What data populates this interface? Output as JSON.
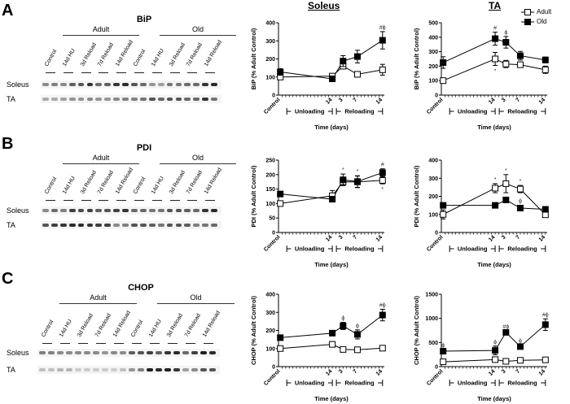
{
  "figure": {
    "column_titles": [
      "Soleus",
      "TA"
    ],
    "legend": [
      {
        "label": "Adult",
        "marker": "open-square"
      },
      {
        "label": "Old",
        "marker": "filled-square"
      }
    ]
  },
  "blots": [
    {
      "letter": "A",
      "title": "BiP",
      "groups": [
        "Adult",
        "Old"
      ],
      "lanes": [
        "Control",
        "14d HU",
        "3d Reload",
        "7d Reload",
        "14d Reload",
        "Control",
        "14d HU",
        "3d Reload",
        "7d Reload",
        "14d Reload"
      ],
      "rows": [
        {
          "label": "Soleus",
          "intensity": [
            0.45,
            0.5,
            0.45,
            0.65,
            0.7,
            0.85,
            0.6,
            0.65,
            0.85,
            0.9,
            0.7,
            0.6,
            0.4,
            0.35,
            0.55,
            0.55,
            0.6,
            0.6,
            0.85,
            0.9
          ]
        },
        {
          "label": "TA",
          "intensity": [
            0.3,
            0.3,
            0.35,
            0.4,
            0.4,
            0.45,
            0.4,
            0.4,
            0.45,
            0.5,
            0.5,
            0.55,
            0.7,
            0.6,
            0.7,
            0.7,
            0.6,
            0.6,
            0.85,
            0.55
          ]
        }
      ]
    },
    {
      "letter": "B",
      "title": "PDI",
      "groups": [
        "Adult",
        "Old"
      ],
      "lanes": [
        "Control",
        "14d HU",
        "3d Reload",
        "7d Reload",
        "14d Reload",
        "Control",
        "14d HU",
        "3d Reload",
        "7d Reload",
        "14d Reload"
      ],
      "rows": [
        {
          "label": "Soleus",
          "intensity": [
            0.45,
            0.6,
            0.5,
            0.8,
            0.75,
            0.8,
            0.65,
            0.7,
            0.8,
            0.85,
            0.6,
            0.6,
            0.55,
            0.55,
            0.7,
            0.7,
            0.65,
            0.6,
            0.85,
            0.9
          ]
        },
        {
          "label": "TA",
          "intensity": [
            0.7,
            0.8,
            0.85,
            0.9,
            0.9,
            0.85,
            0.8,
            0.8,
            0.45,
            0.5,
            0.7,
            0.7,
            0.65,
            0.55,
            0.7,
            0.7,
            0.65,
            0.5,
            0.55,
            0.6
          ]
        }
      ]
    },
    {
      "letter": "C",
      "title": "CHOP",
      "groups": [
        "Adult",
        "Old"
      ],
      "lanes": [
        "Control",
        "14d HU",
        "3d Reload",
        "7d Reload",
        "14d Reload",
        "Control",
        "14d HU",
        "3d Reload",
        "7d Reload",
        "14d Reload"
      ],
      "rows": [
        {
          "label": "Soleus",
          "intensity": [
            0.5,
            0.5,
            0.45,
            0.45,
            0.45,
            0.45,
            0.45,
            0.4,
            0.45,
            0.45,
            0.65,
            0.7,
            0.8,
            0.65,
            0.85,
            0.9,
            0.6,
            0.8,
            0.95,
            0.9
          ]
        },
        {
          "label": "TA",
          "intensity": [
            0.2,
            0.2,
            0.25,
            0.25,
            0.15,
            0.15,
            0.15,
            0.15,
            0.15,
            0.2,
            0.4,
            0.5,
            0.95,
            0.9,
            0.95,
            0.85,
            0.35,
            0.45,
            0.7,
            0.7
          ]
        }
      ]
    }
  ],
  "chart_data": [
    {
      "id": "bip-soleus",
      "type": "line",
      "title": "Soleus",
      "ylabel": "BiP (% Adult Control)",
      "xlabel": "Time (days)",
      "ylim": [
        0,
        400
      ],
      "yticks": [
        0,
        100,
        200,
        300,
        400
      ],
      "x_categories": [
        "Control",
        "14",
        "3",
        "7",
        "14"
      ],
      "x_groups": [
        "Unloading",
        "Reloading"
      ],
      "series": [
        {
          "name": "Adult",
          "values": [
            100,
            105,
            160,
            115,
            140
          ],
          "errors": [
            0,
            10,
            15,
            15,
            30
          ],
          "annotations": [
            "",
            "",
            "",
            "",
            ""
          ]
        },
        {
          "name": "Old",
          "values": [
            128,
            90,
            188,
            213,
            303
          ],
          "errors": [
            18,
            8,
            30,
            35,
            48
          ],
          "annotations": [
            "",
            "",
            "",
            "",
            "#ϕ"
          ]
        }
      ]
    },
    {
      "id": "bip-ta",
      "type": "line",
      "title": "TA",
      "ylabel": "BiP (% Adult Control)",
      "xlabel": "Time (days)",
      "ylim": [
        0,
        500
      ],
      "yticks": [
        0,
        100,
        200,
        300,
        400,
        500
      ],
      "x_categories": [
        "Control",
        "14",
        "3",
        "7",
        "14"
      ],
      "x_groups": [
        "Unloading",
        "Reloading"
      ],
      "legend": "top-right",
      "series": [
        {
          "name": "Adult",
          "values": [
            100,
            250,
            215,
            210,
            175
          ],
          "errors": [
            5,
            45,
            25,
            10,
            25
          ],
          "annotations": [
            "",
            "*",
            "",
            "",
            ""
          ],
          "annotation_pos": "below"
        },
        {
          "name": "Old",
          "values": [
            225,
            390,
            365,
            272,
            243
          ],
          "errors": [
            40,
            45,
            40,
            30,
            20
          ],
          "annotations": [
            "",
            "#",
            "ϕ",
            "",
            ""
          ]
        }
      ]
    },
    {
      "id": "pdi-soleus",
      "type": "line",
      "title": "",
      "ylabel": "PDI (% Adult Control)",
      "xlabel": "Time (days)",
      "ylim": [
        0,
        250
      ],
      "yticks": [
        0,
        50,
        100,
        150,
        200,
        250
      ],
      "x_categories": [
        "Control",
        "14",
        "3",
        "7",
        "14"
      ],
      "x_groups": [
        "Unloading",
        "Reloading"
      ],
      "series": [
        {
          "name": "Adult",
          "values": [
            100,
            127,
            175,
            175,
            180
          ],
          "errors": [
            5,
            18,
            12,
            20,
            12
          ],
          "annotations": [
            "",
            "",
            "",
            "",
            "*"
          ],
          "annotation_pos": "below"
        },
        {
          "name": "Old",
          "values": [
            133,
            115,
            182,
            176,
            207
          ],
          "errors": [
            5,
            8,
            20,
            20,
            13
          ],
          "annotations": [
            "",
            "",
            "*",
            "*",
            "#"
          ]
        }
      ]
    },
    {
      "id": "pdi-ta",
      "type": "line",
      "title": "",
      "ylabel": "PDI (% Adult Control)",
      "xlabel": "Time (days)",
      "ylim": [
        0,
        400
      ],
      "yticks": [
        0,
        100,
        200,
        300,
        400
      ],
      "x_categories": [
        "Control",
        "14",
        "3",
        "7",
        "14"
      ],
      "x_groups": [
        "Unloading",
        "Reloading"
      ],
      "series": [
        {
          "name": "Adult",
          "values": [
            100,
            245,
            270,
            240,
            98
          ],
          "errors": [
            25,
            25,
            50,
            20,
            8
          ],
          "annotations": [
            "",
            "*",
            "*",
            "*",
            ""
          ]
        },
        {
          "name": "Old",
          "values": [
            150,
            150,
            180,
            135,
            128
          ],
          "errors": [
            8,
            5,
            8,
            15,
            12
          ],
          "annotations": [
            "",
            "",
            "",
            "ϕ",
            ""
          ]
        }
      ]
    },
    {
      "id": "chop-soleus",
      "type": "line",
      "title": "",
      "ylabel": "CHOP (% Adult Control)",
      "xlabel": "Time (days)",
      "ylim": [
        0,
        400
      ],
      "yticks": [
        0,
        100,
        200,
        300,
        400
      ],
      "x_categories": [
        "Control",
        "14",
        "3",
        "7",
        "14"
      ],
      "x_groups": [
        "Unloading",
        "Reloading"
      ],
      "series": [
        {
          "name": "Adult",
          "values": [
            100,
            123,
            95,
            93,
            102
          ],
          "errors": [
            5,
            15,
            5,
            5,
            5
          ],
          "annotations": [
            "",
            "",
            "",
            "",
            ""
          ]
        },
        {
          "name": "Old",
          "values": [
            160,
            185,
            225,
            178,
            285
          ],
          "errors": [
            5,
            8,
            20,
            25,
            32
          ],
          "annotations": [
            "",
            "",
            "ϕ",
            "ϕ",
            "#ϕ"
          ]
        }
      ]
    },
    {
      "id": "chop-ta",
      "type": "line",
      "title": "",
      "ylabel": "CHOP (% Adult Control)",
      "xlabel": "Time (days)",
      "ylim": [
        0,
        1500
      ],
      "yticks": [
        0,
        500,
        1000,
        1500
      ],
      "x_categories": [
        "Control",
        "14",
        "3",
        "7",
        "14"
      ],
      "x_groups": [
        "Unloading",
        "Reloading"
      ],
      "series": [
        {
          "name": "Adult",
          "values": [
            100,
            145,
            110,
            130,
            140
          ],
          "errors": [
            10,
            15,
            10,
            10,
            10
          ],
          "annotations": [
            "",
            "",
            "",
            "",
            ""
          ]
        },
        {
          "name": "Old",
          "values": [
            320,
            335,
            710,
            415,
            870
          ],
          "errors": [
            30,
            90,
            30,
            30,
            120
          ],
          "annotations": [
            "ϕ",
            "ϕ",
            "#ϕ",
            "ϕ",
            "#ϕ"
          ]
        }
      ]
    }
  ]
}
